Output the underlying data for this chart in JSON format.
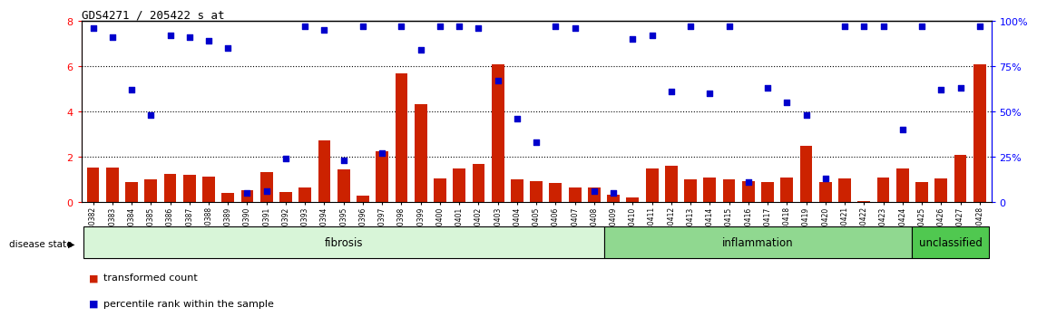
{
  "title": "GDS4271 / 205422_s_at",
  "samples": [
    "GSM380382",
    "GSM380383",
    "GSM380384",
    "GSM380385",
    "GSM380386",
    "GSM380387",
    "GSM380388",
    "GSM380389",
    "GSM380390",
    "GSM380391",
    "GSM380392",
    "GSM380393",
    "GSM380394",
    "GSM380395",
    "GSM380396",
    "GSM380397",
    "GSM380398",
    "GSM380399",
    "GSM380400",
    "GSM380401",
    "GSM380402",
    "GSM380403",
    "GSM380404",
    "GSM380405",
    "GSM380406",
    "GSM380407",
    "GSM380408",
    "GSM380409",
    "GSM380410",
    "GSM380411",
    "GSM380412",
    "GSM380413",
    "GSM380414",
    "GSM380415",
    "GSM380416",
    "GSM380417",
    "GSM380418",
    "GSM380419",
    "GSM380420",
    "GSM380421",
    "GSM380422",
    "GSM380423",
    "GSM380424",
    "GSM380425",
    "GSM380426",
    "GSM380427",
    "GSM380428"
  ],
  "red_bars": [
    1.55,
    1.55,
    0.9,
    1.0,
    1.25,
    1.2,
    1.15,
    0.4,
    0.55,
    1.35,
    0.45,
    0.65,
    2.75,
    1.45,
    0.3,
    2.25,
    5.7,
    4.35,
    1.05,
    1.5,
    1.7,
    6.1,
    1.0,
    0.95,
    0.85,
    0.65,
    0.65,
    0.35,
    0.2,
    1.5,
    1.6,
    1.0,
    1.1,
    1.0,
    0.95,
    0.9,
    1.1,
    2.5,
    0.9,
    1.05,
    0.05,
    1.1,
    1.5,
    0.9,
    1.05,
    2.1,
    6.1
  ],
  "blue_dots_pct": [
    96,
    91,
    62,
    48,
    92,
    91,
    89,
    85,
    5,
    6,
    24,
    97,
    95,
    23,
    97,
    27,
    97,
    84,
    97,
    97,
    96,
    67,
    46,
    33,
    97,
    96,
    6,
    5,
    90,
    92,
    61,
    97,
    60,
    97,
    11,
    63,
    55,
    48,
    13,
    97,
    97,
    97,
    40,
    97,
    62,
    63,
    97
  ],
  "group_defs": [
    {
      "label": "fibrosis",
      "start": 0,
      "end": 27,
      "color": "#d8f5d8"
    },
    {
      "label": "inflammation",
      "start": 27,
      "end": 43,
      "color": "#90d890"
    },
    {
      "label": "unclassified",
      "start": 43,
      "end": 47,
      "color": "#50c850"
    }
  ],
  "ylim_left": [
    0,
    8
  ],
  "yticks_left": [
    0,
    2,
    4,
    6,
    8
  ],
  "ylim_right": [
    0,
    100
  ],
  "yticks_right": [
    0,
    25,
    50,
    75,
    100
  ],
  "bar_color": "#cc2200",
  "dot_color": "#0000cc",
  "label_transformed": "transformed count",
  "label_percentile": "percentile rank within the sample",
  "disease_state_label": "disease state"
}
